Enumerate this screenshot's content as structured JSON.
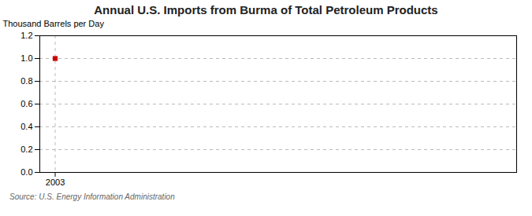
{
  "chart_data": {
    "type": "scatter",
    "title": "Annual U.S. Imports from Burma of Total Petroleum Products",
    "ylabel": "Thousand Barrels per Day",
    "source": "Source: U.S. Energy Information Administration",
    "x": [
      2003
    ],
    "values": [
      1.0
    ],
    "color": "#cc0000",
    "marker": "square",
    "xlim": [
      2002.4,
      2021
    ],
    "xticks": [
      2003
    ],
    "ylim": [
      0.0,
      1.2
    ],
    "yticks": [
      {
        "value": 0.0,
        "label": "0.0"
      },
      0.2,
      0.4,
      0.6,
      0.8,
      {
        "value": 1.0,
        "label": "1.0"
      },
      1.2
    ],
    "grid": true
  }
}
